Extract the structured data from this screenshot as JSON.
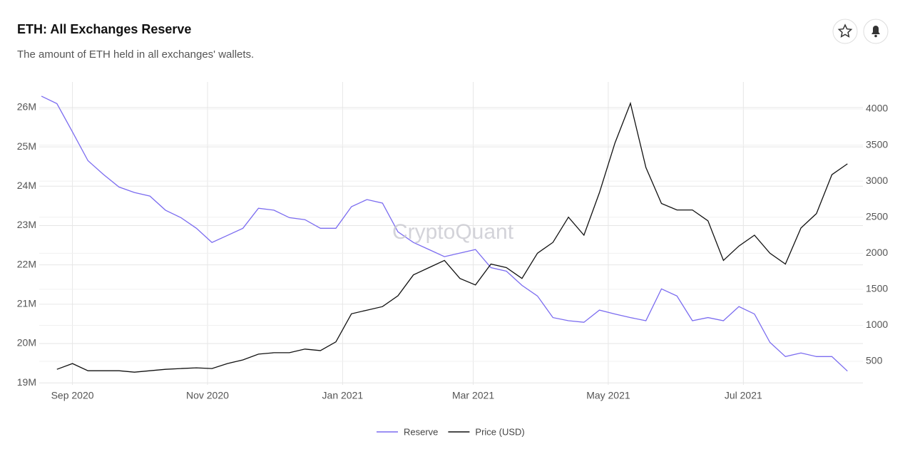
{
  "chart_data": {
    "type": "line",
    "title": "ETH: All Exchanges Reserve",
    "subtitle": "The amount of ETH held in all exchanges' wallets.",
    "watermark": "CryptoQuant",
    "x": [
      "2020-08-18",
      "2020-08-25",
      "2020-09-01",
      "2020-09-08",
      "2020-09-15",
      "2020-09-22",
      "2020-09-29",
      "2020-10-06",
      "2020-10-13",
      "2020-10-20",
      "2020-10-27",
      "2020-11-03",
      "2020-11-10",
      "2020-11-17",
      "2020-11-24",
      "2020-12-01",
      "2020-12-08",
      "2020-12-15",
      "2020-12-22",
      "2020-12-29",
      "2021-01-05",
      "2021-01-12",
      "2021-01-19",
      "2021-01-26",
      "2021-02-02",
      "2021-02-09",
      "2021-02-16",
      "2021-02-23",
      "2021-03-02",
      "2021-03-09",
      "2021-03-16",
      "2021-03-23",
      "2021-03-30",
      "2021-04-06",
      "2021-04-13",
      "2021-04-20",
      "2021-04-27",
      "2021-05-04",
      "2021-05-11",
      "2021-05-18",
      "2021-05-25",
      "2021-06-01",
      "2021-06-08",
      "2021-06-15",
      "2021-06-22",
      "2021-06-29",
      "2021-07-06",
      "2021-07-13",
      "2021-07-20",
      "2021-07-27",
      "2021-08-03",
      "2021-08-10",
      "2021-08-17"
    ],
    "series": [
      {
        "name": "Reserve",
        "color": "#7b6cf0",
        "axis": "y",
        "values": [
          26290000,
          26100000,
          25380000,
          24650000,
          24300000,
          23980000,
          23840000,
          23750000,
          23390000,
          23200000,
          22930000,
          22570000,
          22750000,
          22930000,
          23440000,
          23390000,
          23200000,
          23150000,
          22930000,
          22930000,
          23480000,
          23660000,
          23570000,
          22840000,
          22570000,
          22390000,
          22210000,
          22300000,
          22390000,
          21930000,
          21840000,
          21480000,
          21210000,
          20660000,
          20580000,
          20540000,
          20850000,
          20750000,
          20660000,
          20580000,
          21390000,
          21210000,
          20580000,
          20660000,
          20580000,
          20940000,
          20750000,
          20030000,
          19670000,
          19760000,
          19670000,
          19670000,
          19300000
        ]
      },
      {
        "name": "Price (USD)",
        "color": "#111111",
        "axis": "y2",
        "values": [
          null,
          390,
          470,
          370,
          370,
          370,
          350,
          370,
          390,
          400,
          410,
          400,
          470,
          520,
          600,
          620,
          620,
          670,
          650,
          770,
          1160,
          1210,
          1260,
          1410,
          1700,
          1800,
          1900,
          1650,
          1560,
          1850,
          1800,
          1650,
          2000,
          2150,
          2500,
          2250,
          2840,
          3530,
          4080,
          3190,
          2690,
          2600,
          2600,
          2450,
          1900,
          2100,
          2250,
          2000,
          1850,
          2350,
          2550,
          3090,
          3240
        ]
      }
    ],
    "xlim": [
      "2020-08-17",
      "2021-08-24"
    ],
    "xticks": [
      {
        "value": "2020-09-01",
        "label": "Sep 2020"
      },
      {
        "value": "2020-11-01",
        "label": "Nov 2020"
      },
      {
        "value": "2021-01-01",
        "label": "Jan 2021"
      },
      {
        "value": "2021-03-01",
        "label": "Mar 2021"
      },
      {
        "value": "2021-05-01",
        "label": "May 2021"
      },
      {
        "value": "2021-07-01",
        "label": "Jul 2021"
      }
    ],
    "ylim": [
      18950000,
      26650000
    ],
    "yticks": [
      {
        "value": 19000000,
        "label": "19M"
      },
      {
        "value": 20000000,
        "label": "20M"
      },
      {
        "value": 21000000,
        "label": "21M"
      },
      {
        "value": 22000000,
        "label": "22M"
      },
      {
        "value": 23000000,
        "label": "23M"
      },
      {
        "value": 24000000,
        "label": "24M"
      },
      {
        "value": 25000000,
        "label": "25M"
      },
      {
        "value": 26000000,
        "label": "26M"
      }
    ],
    "y2lim": [
      174,
      4376
    ],
    "y2ticks": [
      500,
      1000,
      1500,
      2000,
      2500,
      3000,
      3500,
      4000
    ],
    "grid": true,
    "legend": "bottom"
  }
}
